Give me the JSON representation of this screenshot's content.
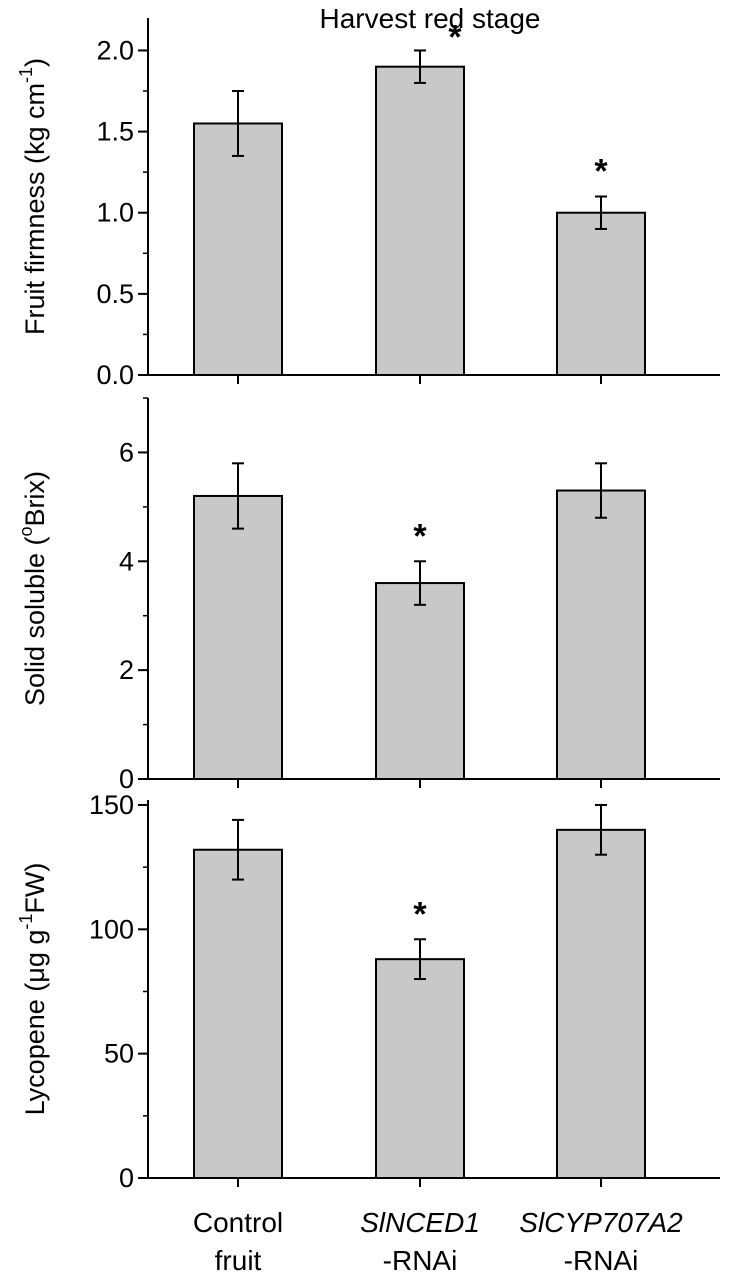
{
  "chart_data": {
    "type": "bar",
    "title": "Harvest red stage",
    "categories": [
      {
        "line1": "Control",
        "line2": "fruit",
        "italic": false
      },
      {
        "line1": "SlNCED1",
        "line2": "-RNAi",
        "italic": true
      },
      {
        "line1": "SlCYP707A2",
        "line2": "-RNAi",
        "italic": true
      }
    ],
    "panels": [
      {
        "id": "firmness",
        "ylabel": {
          "main": "Fruit firmness (kg cm",
          "sup": "-1",
          "tail": ")"
        },
        "ylim": [
          0,
          2.2
        ],
        "major_ticks": [
          0,
          0.5,
          1.0,
          1.5,
          2.0
        ],
        "tick_labels": [
          "0.0",
          "0.5",
          "1.0",
          "1.5",
          "2.0"
        ],
        "minor_step": 0.25,
        "values": [
          1.55,
          1.9,
          1.0
        ],
        "errors": [
          0.2,
          0.1,
          0.1
        ],
        "significant": [
          false,
          true,
          true
        ],
        "marker": "*"
      },
      {
        "id": "soluble",
        "ylabel": {
          "main": "Solid soluble (",
          "sup": "o",
          "tail": "Brix)"
        },
        "ylim": [
          0,
          7
        ],
        "major_ticks": [
          0,
          2,
          4,
          6
        ],
        "tick_labels": [
          "0",
          "2",
          "4",
          "6"
        ],
        "minor_step": 1,
        "values": [
          5.2,
          3.6,
          5.3
        ],
        "errors": [
          0.6,
          0.4,
          0.5
        ],
        "significant": [
          false,
          true,
          false
        ],
        "marker": "*"
      },
      {
        "id": "lycopene",
        "ylabel": {
          "main": "Lycopene (μg g",
          "sup": "-1",
          "tail": "FW)"
        },
        "ylim": [
          0,
          152
        ],
        "major_ticks": [
          0,
          50,
          100,
          150
        ],
        "tick_labels": [
          "0",
          "50",
          "100",
          "150"
        ],
        "minor_step": 25,
        "values": [
          132,
          88,
          140
        ],
        "errors": [
          12,
          8,
          10
        ],
        "significant": [
          false,
          true,
          false
        ],
        "marker": "*"
      }
    ],
    "colors": {
      "bar_fill": "#c8c8c8",
      "stroke": "#000000"
    }
  }
}
